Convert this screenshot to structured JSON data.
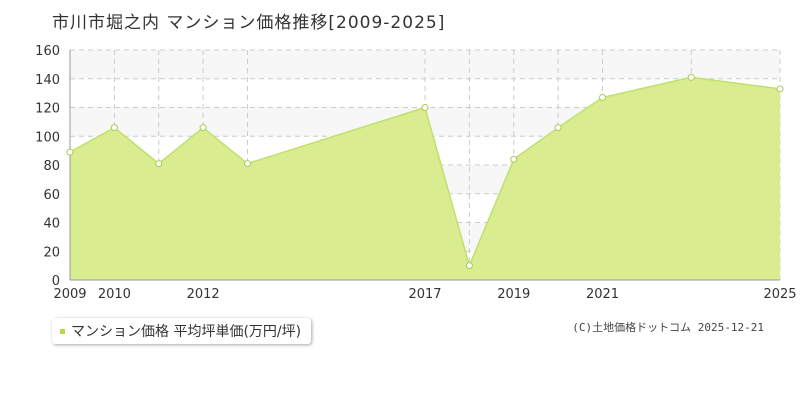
{
  "chart_data": {
    "type": "area",
    "title": "市川市堀之内 マンション価格推移[2009-2025]",
    "x": [
      2009,
      2010,
      2011,
      2012,
      2013,
      2017,
      2018,
      2019,
      2020,
      2021,
      2023,
      2025
    ],
    "series": [
      {
        "name": "マンション価格 平均坪単価(万円/坪)",
        "values": [
          89,
          106,
          81,
          106,
          81,
          120,
          10,
          84,
          106,
          127,
          141,
          133
        ]
      }
    ],
    "xlim": [
      2009,
      2025
    ],
    "xticks_labeled": [
      "2009",
      "2010",
      "2012",
      "2017",
      "2019",
      "2021",
      "2025"
    ],
    "ylim": [
      0,
      160
    ],
    "yticks": [
      "0",
      "20",
      "40",
      "60",
      "80",
      "100",
      "120",
      "140",
      "160"
    ],
    "grid": true,
    "legend_position": "bottom-left",
    "colors": {
      "fill": "#d9ec8f",
      "line": "#c0e070",
      "marker_stroke": "#a8cc50",
      "grid": "#cccccc",
      "band": "#f7f7f7",
      "legend_swatch": "#b5db4a"
    }
  },
  "footer": {
    "copyright": "(C)土地価格ドットコム 2025-12-21"
  }
}
